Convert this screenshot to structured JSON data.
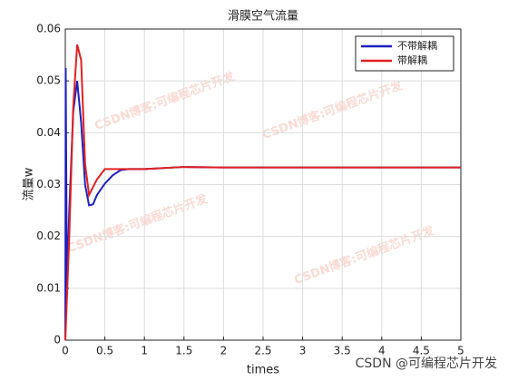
{
  "chart_data": {
    "type": "line",
    "title": "滑膜空气流量",
    "xlabel": "times",
    "ylabel": "流量w",
    "x": [
      0,
      0.005,
      0.02,
      0.05,
      0.1,
      0.15,
      0.2,
      0.25,
      0.3,
      0.35,
      0.4,
      0.5,
      0.6,
      0.7,
      0.8,
      1,
      1.5,
      2,
      2.5,
      3,
      3.5,
      4,
      4.5,
      5
    ],
    "series": [
      {
        "name": "不带解耦",
        "color": "#1f1fbf",
        "values": [
          0,
          0.0525,
          0.01,
          0.025,
          0.044,
          0.05,
          0.042,
          0.03,
          0.026,
          0.0262,
          0.028,
          0.0302,
          0.0318,
          0.0328,
          0.033,
          0.033,
          0.0334,
          0.0333,
          0.0333,
          0.0333,
          0.0333,
          0.0333,
          0.0333,
          0.0333
        ]
      },
      {
        "name": "带解耦",
        "color": "#e02020",
        "values": [
          0,
          0.002,
          0.008,
          0.02,
          0.045,
          0.057,
          0.054,
          0.034,
          0.028,
          0.0295,
          0.031,
          0.033,
          0.033,
          0.033,
          0.033,
          0.033,
          0.0334,
          0.0333,
          0.0333,
          0.0333,
          0.0333,
          0.0333,
          0.0333,
          0.0333
        ]
      }
    ],
    "xlim": [
      0,
      5
    ],
    "xticks": [
      0,
      0.5,
      1,
      1.5,
      2,
      2.5,
      3,
      3.5,
      4,
      4.5,
      5
    ],
    "ylim": [
      0,
      0.06
    ],
    "yticks": [
      0,
      0.01,
      0.02,
      0.03,
      0.04,
      0.05,
      0.06
    ],
    "grid": true,
    "legend": "top-right",
    "watermark": "CSDN博客:可编程芯片开发",
    "credit": "CSDN @可编程芯片开发"
  }
}
